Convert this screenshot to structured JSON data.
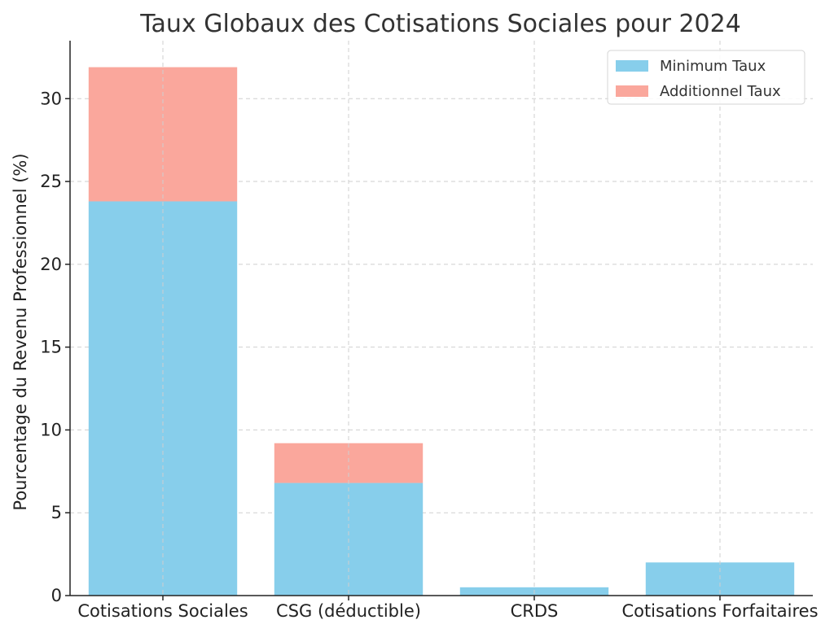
{
  "chart_data": {
    "type": "bar",
    "stacked": true,
    "title": "Taux Globaux des Cotisations Sociales pour 2024",
    "xlabel": "",
    "ylabel": "Pourcentage du Revenu Professionnel (%)",
    "categories": [
      "Cotisations Sociales",
      "CSG (déductible)",
      "CRDS",
      "Cotisations Forfaitaires"
    ],
    "series": [
      {
        "name": "Minimum Taux",
        "values": [
          23.8,
          6.8,
          0.5,
          2.0
        ],
        "color": "#87CEEB"
      },
      {
        "name": "Additionnel Taux",
        "values": [
          8.1,
          2.4,
          0.0,
          0.0
        ],
        "color": "#FAA79C"
      }
    ],
    "ylim": [
      0,
      33.5
    ],
    "yticks": [
      0,
      5,
      10,
      15,
      20,
      25,
      30
    ],
    "grid": true,
    "legend": "top-right"
  }
}
